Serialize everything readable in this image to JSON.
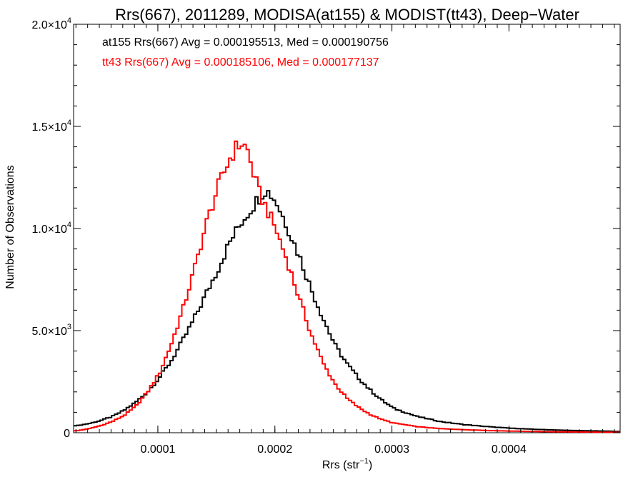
{
  "chart_data": {
    "type": "line",
    "title": "Rrs(667), 2011289, MODISA(at155) & MODIST(tt43), Deep−Water",
    "xlabel_base": "Rrs (str",
    "xlabel_sup": "−1",
    "xlabel_close": ")",
    "ylabel": "Number of Observations",
    "xlim": [
      2.8e-05,
      0.000495
    ],
    "ylim": [
      0,
      20000
    ],
    "x_ticks": [
      {
        "value": 0.0001,
        "label": "0.0001"
      },
      {
        "value": 0.0002,
        "label": "0.0002"
      },
      {
        "value": 0.0003,
        "label": "0.0003"
      },
      {
        "value": 0.0004,
        "label": "0.0004"
      }
    ],
    "y_ticks": [
      {
        "value": 0,
        "mant": "0",
        "exp": ""
      },
      {
        "value": 5000,
        "mant": "5.0×10",
        "exp": "3"
      },
      {
        "value": 10000,
        "mant": "1.0×10",
        "exp": "4"
      },
      {
        "value": 15000,
        "mant": "1.5×10",
        "exp": "4"
      },
      {
        "value": 20000,
        "mant": "2.0×10",
        "exp": "4"
      }
    ],
    "annotations": [
      {
        "text": "at155 Rrs(667) Avg = 0.000195513, Med = 0.000190756",
        "color": "#000000"
      },
      {
        "text": "tt43 Rrs(667) Avg = 0.000185106, Med = 0.000177137",
        "color": "#ff0000"
      }
    ],
    "series": [
      {
        "color": "#000000",
        "x": [
          3e-05,
          4e-05,
          5e-05,
          6e-05,
          7e-05,
          8e-05,
          9e-05,
          0.0001,
          0.00011,
          0.00012,
          0.00013,
          0.00014,
          0.00015,
          0.00016,
          0.00017,
          0.00018,
          0.000185,
          0.00019,
          0.000195,
          0.0002,
          0.00021,
          0.00022,
          0.00023,
          0.00024,
          0.00025,
          0.00026,
          0.00027,
          0.00028,
          0.00029,
          0.0003,
          0.00032,
          0.00034,
          0.00036,
          0.00038,
          0.0004,
          0.00042,
          0.00044,
          0.00046,
          0.00048,
          0.000495
        ],
        "values": [
          350,
          450,
          600,
          800,
          1100,
          1500,
          2000,
          2700,
          3500,
          4500,
          5600,
          6800,
          8000,
          9300,
          10300,
          11100,
          11500,
          11900,
          11700,
          11300,
          10000,
          8600,
          7000,
          5600,
          4300,
          3400,
          2700,
          2100,
          1600,
          1200,
          800,
          550,
          400,
          300,
          220,
          170,
          130,
          100,
          80,
          60
        ]
      },
      {
        "color": "#ff0000",
        "x": [
          3e-05,
          4e-05,
          5e-05,
          6e-05,
          7e-05,
          8e-05,
          9e-05,
          0.0001,
          0.00011,
          0.00012,
          0.00013,
          0.00014,
          0.00015,
          0.00016,
          0.000165,
          0.00017,
          0.000175,
          0.00018,
          0.000185,
          0.00019,
          0.0002,
          0.00021,
          0.00022,
          0.00023,
          0.00024,
          0.00025,
          0.00026,
          0.00027,
          0.00028,
          0.00029,
          0.0003,
          0.00032,
          0.00034,
          0.00036,
          0.00038,
          0.0004,
          0.00042,
          0.00044,
          0.00046,
          0.00048,
          0.000495
        ],
        "values": [
          100,
          200,
          350,
          550,
          850,
          1300,
          2000,
          2900,
          4300,
          6000,
          8000,
          10200,
          12000,
          13400,
          13900,
          14200,
          13900,
          12800,
          11800,
          11200,
          9900,
          8300,
          6500,
          4800,
          3400,
          2400,
          1700,
          1250,
          900,
          650,
          480,
          300,
          200,
          150,
          110,
          80,
          60,
          45,
          35,
          25,
          20
        ]
      }
    ]
  }
}
